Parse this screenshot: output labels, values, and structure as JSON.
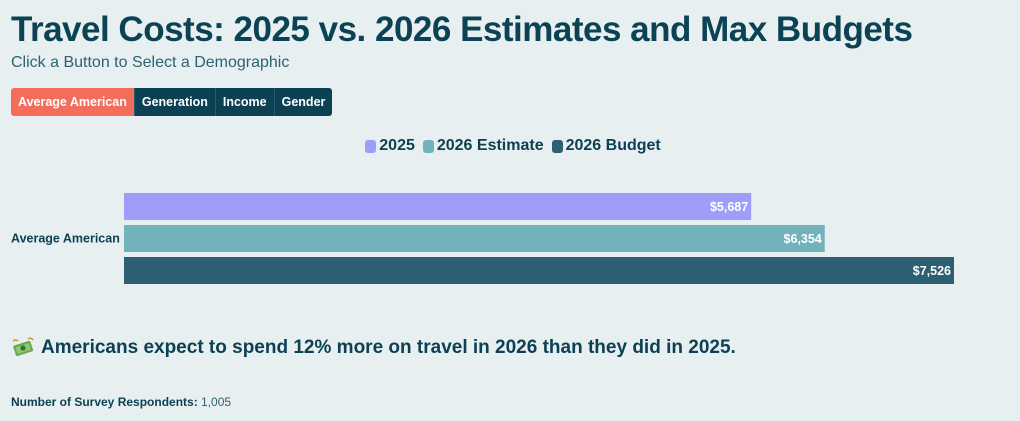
{
  "title": "Travel Costs: 2025 vs. 2026 Estimates and Max Budgets",
  "subtitle": "Click a Button to Select a Demographic",
  "buttons": [
    {
      "label": "Average American",
      "active": true
    },
    {
      "label": "Generation",
      "active": false
    },
    {
      "label": "Income",
      "active": false
    },
    {
      "label": "Gender",
      "active": false
    }
  ],
  "insight": {
    "icon": "money-flying-icon",
    "text": "Americans expect to spend 12% more on travel in 2026 than they did in 2025."
  },
  "footer": {
    "label": "Number of Survey Respondents:",
    "value": "1,005"
  },
  "chart_data": {
    "type": "bar",
    "orientation": "horizontal",
    "categories": [
      "Average American"
    ],
    "series": [
      {
        "name": "2025",
        "color": "#9e9dfa",
        "values": [
          5687
        ],
        "labels": [
          "$5,687"
        ]
      },
      {
        "name": "2026 Estimate",
        "color": "#72b3bb",
        "values": [
          6354
        ],
        "labels": [
          "$6,354"
        ]
      },
      {
        "name": "2026 Budget",
        "color": "#2c5f71",
        "values": [
          7526
        ],
        "labels": [
          "$7,526"
        ]
      }
    ],
    "legend_position": "top-center",
    "grid": false,
    "xlim": [
      0,
      7526
    ]
  }
}
